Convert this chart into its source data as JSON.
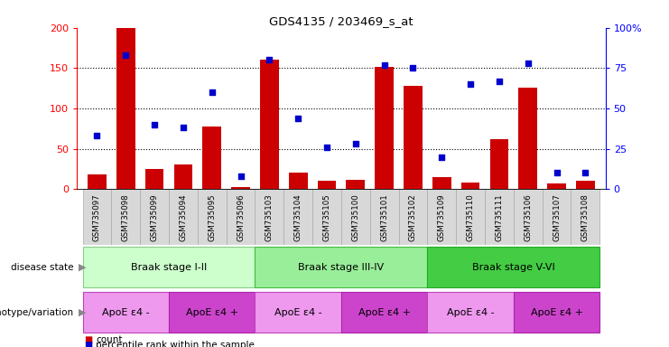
{
  "title": "GDS4135 / 203469_s_at",
  "samples": [
    "GSM735097",
    "GSM735098",
    "GSM735099",
    "GSM735094",
    "GSM735095",
    "GSM735096",
    "GSM735103",
    "GSM735104",
    "GSM735105",
    "GSM735100",
    "GSM735101",
    "GSM735102",
    "GSM735109",
    "GSM735110",
    "GSM735111",
    "GSM735106",
    "GSM735107",
    "GSM735108"
  ],
  "counts": [
    18,
    200,
    25,
    30,
    78,
    3,
    160,
    20,
    10,
    12,
    152,
    128,
    15,
    8,
    62,
    126,
    7,
    10
  ],
  "percentile_ranks": [
    33,
    83,
    40,
    38,
    60,
    8,
    80,
    44,
    26,
    28,
    77,
    75,
    20,
    65,
    67,
    78,
    10,
    10
  ],
  "ylim_left": [
    0,
    200
  ],
  "ylim_right": [
    0,
    100
  ],
  "yticks_left": [
    0,
    50,
    100,
    150,
    200
  ],
  "yticks_right": [
    0,
    25,
    50,
    75,
    100
  ],
  "yticklabels_right": [
    "0",
    "25",
    "50",
    "75",
    "100%"
  ],
  "bar_color": "#cc0000",
  "dot_color": "#0000cc",
  "disease_state_groups": [
    {
      "label": "Braak stage I-II",
      "start": 0,
      "end": 5,
      "color": "#ccffcc",
      "edge": "#88cc88"
    },
    {
      "label": "Braak stage III-IV",
      "start": 6,
      "end": 11,
      "color": "#99ee99",
      "edge": "#44bb44"
    },
    {
      "label": "Braak stage V-VI",
      "start": 12,
      "end": 17,
      "color": "#44cc44",
      "edge": "#22aa22"
    }
  ],
  "genotype_groups": [
    {
      "label": "ApoE ε4 -",
      "start": 0,
      "end": 2,
      "color": "#ee99ee",
      "edge": "#bb44bb"
    },
    {
      "label": "ApoE ε4 +",
      "start": 3,
      "end": 5,
      "color": "#cc44cc",
      "edge": "#aa22aa"
    },
    {
      "label": "ApoE ε4 -",
      "start": 6,
      "end": 8,
      "color": "#ee99ee",
      "edge": "#bb44bb"
    },
    {
      "label": "ApoE ε4 +",
      "start": 9,
      "end": 11,
      "color": "#cc44cc",
      "edge": "#aa22aa"
    },
    {
      "label": "ApoE ε4 -",
      "start": 12,
      "end": 14,
      "color": "#ee99ee",
      "edge": "#bb44bb"
    },
    {
      "label": "ApoE ε4 +",
      "start": 15,
      "end": 17,
      "color": "#cc44cc",
      "edge": "#aa22aa"
    }
  ],
  "left_label_disease": "disease state",
  "left_label_genotype": "genotype/variation",
  "legend_count": "count",
  "legend_percentile": "percentile rank within the sample",
  "background_color": "#ffffff",
  "tick_bg_color": "#d8d8d8",
  "tick_edge_color": "#aaaaaa"
}
